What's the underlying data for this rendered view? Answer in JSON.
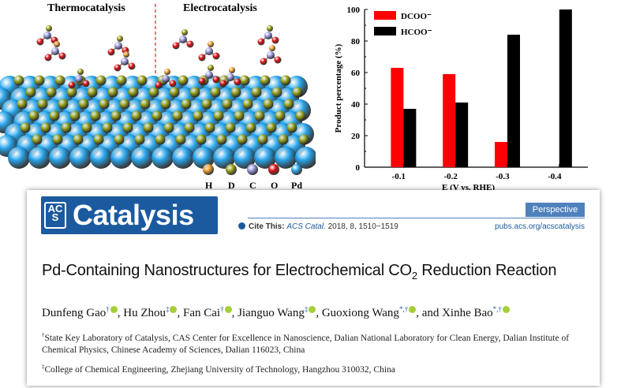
{
  "scheme": {
    "left_title": "Thermocatalysis",
    "right_title": "Electrocatalysis",
    "legend": [
      {
        "label": "H",
        "color": "#f0a030"
      },
      {
        "label": "D",
        "color": "#9aa21a"
      },
      {
        "label": "C",
        "color": "#9a9adf"
      },
      {
        "label": "O",
        "color": "#e01010"
      },
      {
        "label": "Pd",
        "color": "#2aa6ec"
      }
    ]
  },
  "chart_data": {
    "type": "bar",
    "categories": [
      "-0.1",
      "-0.2",
      "-0.3",
      "-0.4"
    ],
    "series": [
      {
        "name": "DCOO⁻",
        "color": "#ff0000",
        "values": [
          63,
          59,
          16,
          0
        ]
      },
      {
        "name": "HCOO⁻",
        "color": "#000000",
        "values": [
          37,
          41,
          84,
          100
        ]
      }
    ],
    "xlabel": "E (V vs. RHE)",
    "ylabel": "Product percentage (%)",
    "ylim": [
      0,
      100
    ],
    "yticks": [
      "0",
      "20",
      "40",
      "60",
      "80",
      "100"
    ],
    "legend_position": "top-left",
    "grid": false
  },
  "paper": {
    "logo_acs": [
      "AC",
      "S"
    ],
    "journal": "Catalysis",
    "badge": "Perspective",
    "cite_label": "Cite This:",
    "cite_journal": "ACS Catal.",
    "cite_rest": "2018, 8, 1510−1519",
    "url": "pubs.acs.org/acscatalysis",
    "title_pre": "Pd-Containing Nanostructures for Electrochemical CO",
    "title_sub": "2",
    "title_post": " Reduction Reaction",
    "authors": [
      {
        "name": "Dunfeng Gao,",
        "mark": "†"
      },
      {
        "name": "Hu Zhou,",
        "mark": "‡"
      },
      {
        "name": "Fan Cai,",
        "mark": "†"
      },
      {
        "name": "Jianguo Wang,",
        "mark": "‡"
      },
      {
        "name": "Guoxiong Wang,",
        "mark": "*,†"
      },
      {
        "name": "and Xinhe Bao",
        "mark": "*,†"
      }
    ],
    "affil_1_mark": "†",
    "affil_1": "State Key Laboratory of Catalysis, CAS Center for Excellence in Nanoscience, Dalian National Laboratory for Clean Energy, Dalian Institute of Chemical Physics, Chinese Academy of Sciences, Dalian 116023, China",
    "affil_2_mark": "‡",
    "affil_2": "College of Chemical Engineering, Zhejiang University of Technology, Hangzhou 310032, China"
  }
}
